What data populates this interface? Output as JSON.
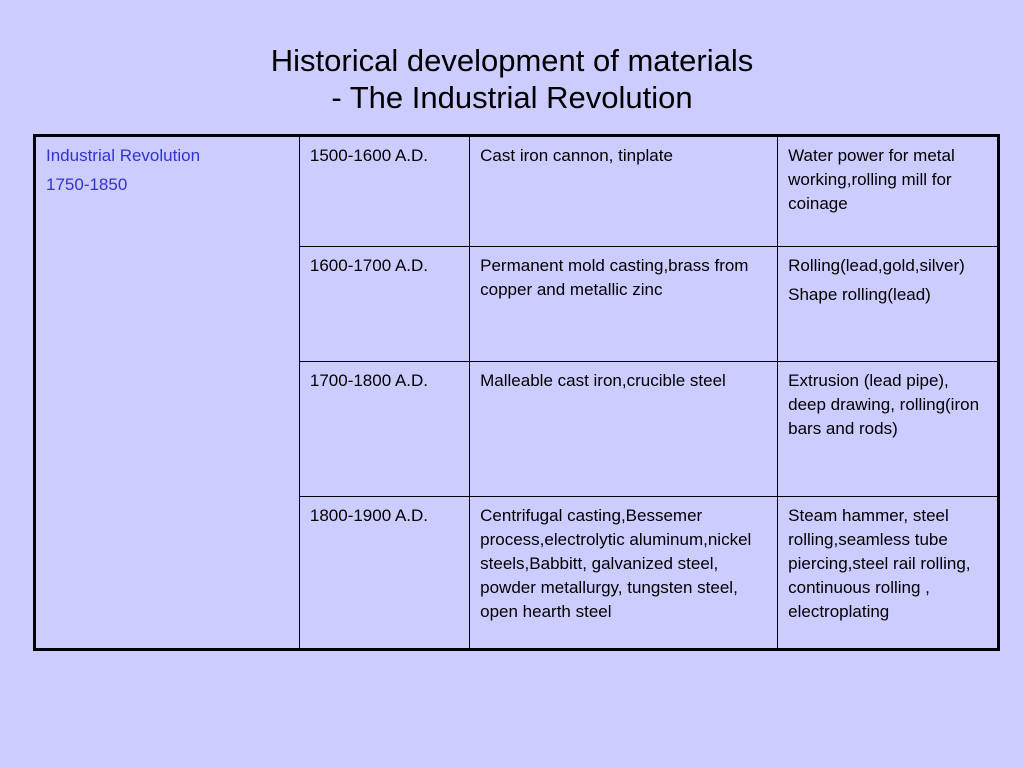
{
  "title": {
    "line1": "Historical development of materials",
    "line2": "- The Industrial Revolution"
  },
  "era": {
    "name": "Industrial Revolution",
    "years": "1750-1850"
  },
  "rows": [
    {
      "period": "1500-1600 A.D.",
      "materials": "Cast iron cannon, tinplate",
      "processes": [
        "Water power for metal working,rolling mill for coinage"
      ]
    },
    {
      "period": "1600-1700 A.D.",
      "materials": "Permanent mold casting,brass from copper and metallic zinc",
      "processes": [
        "Rolling(lead,gold,silver)",
        "Shape rolling(lead)"
      ]
    },
    {
      "period": "1700-1800 A.D.",
      "materials": "Malleable cast iron,crucible steel",
      "processes": [
        "Extrusion (lead pipe), deep drawing, rolling(iron bars and rods)"
      ]
    },
    {
      "period": "1800-1900 A.D.",
      "materials": "Centrifugal casting,Bessemer process,electrolytic aluminum,nickel steels,Babbitt, galvanized steel, powder metallurgy, tungsten steel, open hearth steel",
      "processes": [
        "Steam hammer, steel rolling,seamless tube piercing,steel rail rolling, continuous rolling , electroplating"
      ]
    }
  ],
  "colors": {
    "background": "#ccccff",
    "era_text": "#3333cc",
    "border": "#000000"
  }
}
